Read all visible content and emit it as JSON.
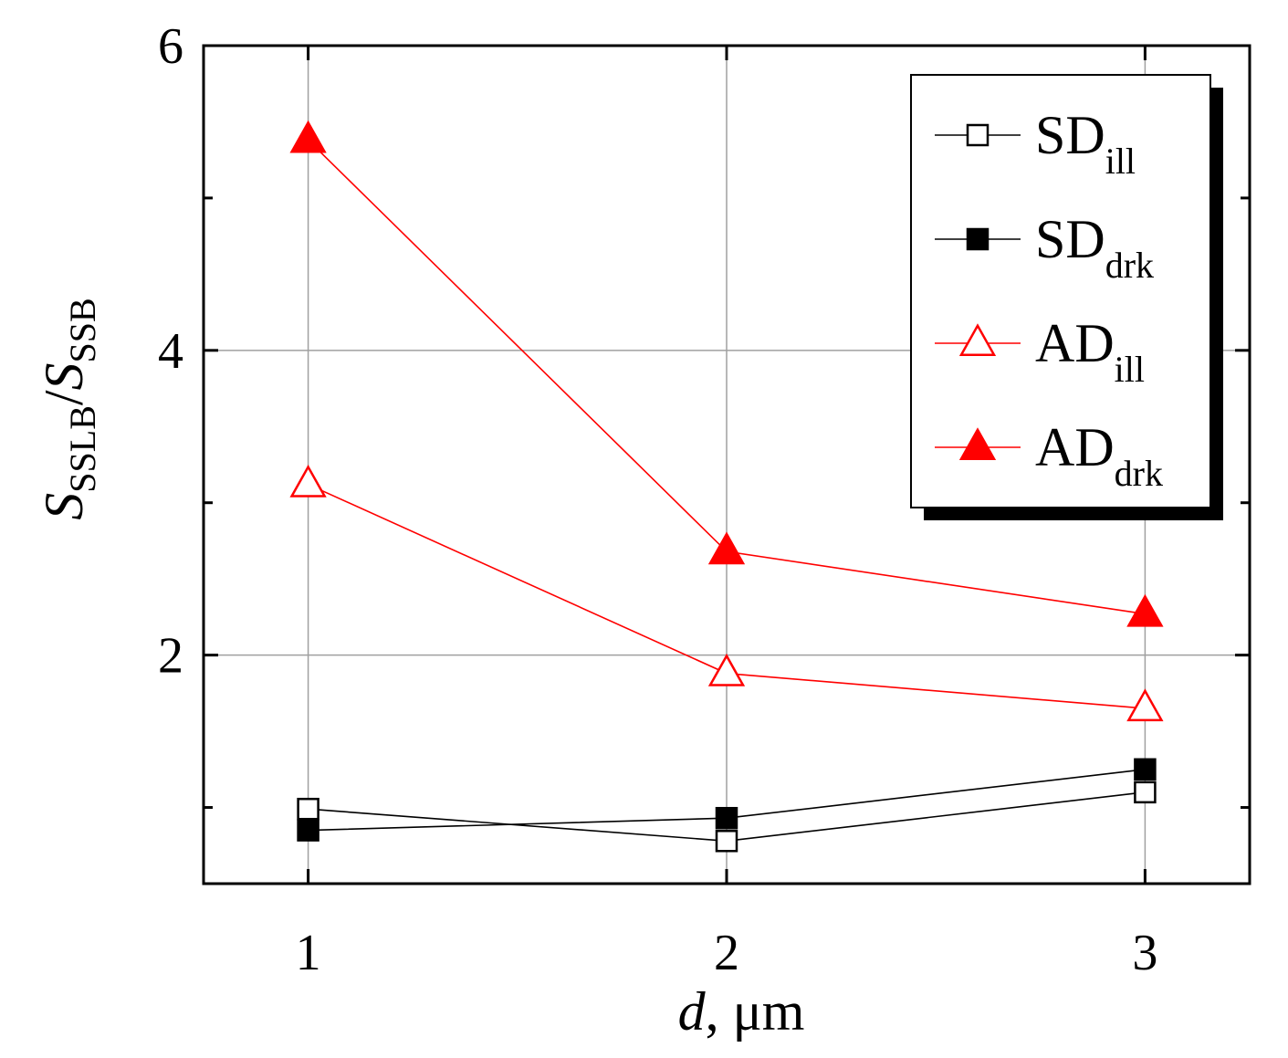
{
  "chart_data": {
    "type": "line",
    "title": "",
    "xlabel": {
      "main": "d",
      "unit": ", μm"
    },
    "ylabel": {
      "s1": "S",
      "sub1": "SSLB",
      "slash": "/",
      "s2": "S",
      "sub2": "SSB"
    },
    "x": [
      1,
      2,
      3
    ],
    "xticks": [
      "1",
      "2",
      "3"
    ],
    "yticks": [
      "2",
      "4",
      "6"
    ],
    "xlim": [
      0.75,
      3.25
    ],
    "ylim": [
      0.5,
      6.0
    ],
    "grid": true,
    "legend_position": "top-right",
    "series": [
      {
        "name": "SD",
        "sub": "ill",
        "values": [
          0.99,
          0.78,
          1.1
        ],
        "color": "#000000",
        "marker": "square-open"
      },
      {
        "name": "SD",
        "sub": "drk",
        "values": [
          0.85,
          0.93,
          1.25
        ],
        "color": "#000000",
        "marker": "square-filled"
      },
      {
        "name": "AD",
        "sub": "ill",
        "values": [
          3.12,
          1.88,
          1.65
        ],
        "color": "#ff0000",
        "marker": "triangle-open"
      },
      {
        "name": "AD",
        "sub": "drk",
        "values": [
          5.38,
          2.68,
          2.27
        ],
        "color": "#ff0000",
        "marker": "triangle-filled"
      }
    ]
  }
}
